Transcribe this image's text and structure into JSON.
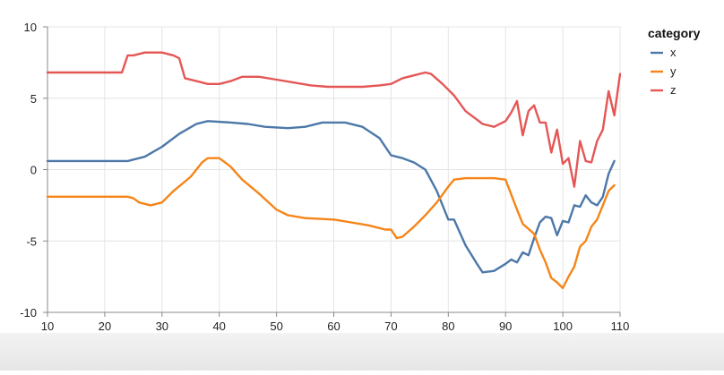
{
  "chart_data": {
    "type": "line",
    "xlim": [
      10,
      110
    ],
    "ylim": [
      -10,
      10
    ],
    "x_ticks": [
      10,
      20,
      30,
      40,
      50,
      60,
      70,
      80,
      90,
      100,
      110
    ],
    "y_ticks": [
      10,
      5,
      0,
      -5,
      -10
    ],
    "grid": true,
    "legend": {
      "title": "category",
      "position": "right",
      "entries": [
        "x",
        "y",
        "z"
      ]
    },
    "colors": {
      "x": "#4c78a8",
      "y": "#f58518",
      "z": "#e45756"
    },
    "series": [
      {
        "name": "x",
        "points": [
          [
            10,
            0.6
          ],
          [
            15,
            0.6
          ],
          [
            20,
            0.6
          ],
          [
            24,
            0.6
          ],
          [
            27,
            0.9
          ],
          [
            30,
            1.6
          ],
          [
            33,
            2.5
          ],
          [
            36,
            3.2
          ],
          [
            38,
            3.4
          ],
          [
            42,
            3.3
          ],
          [
            45,
            3.2
          ],
          [
            48,
            3.0
          ],
          [
            52,
            2.9
          ],
          [
            55,
            3.0
          ],
          [
            58,
            3.3
          ],
          [
            62,
            3.3
          ],
          [
            65,
            3.0
          ],
          [
            68,
            2.2
          ],
          [
            70,
            1.0
          ],
          [
            72,
            0.8
          ],
          [
            74,
            0.5
          ],
          [
            76,
            0.0
          ],
          [
            78,
            -1.5
          ],
          [
            80,
            -3.5
          ],
          [
            81,
            -3.5
          ],
          [
            83,
            -5.3
          ],
          [
            85,
            -6.6
          ],
          [
            86,
            -7.2
          ],
          [
            88,
            -7.1
          ],
          [
            90,
            -6.6
          ],
          [
            91,
            -6.3
          ],
          [
            92,
            -6.5
          ],
          [
            93,
            -5.8
          ],
          [
            94,
            -6.0
          ],
          [
            95,
            -4.8
          ],
          [
            96,
            -3.7
          ],
          [
            97,
            -3.3
          ],
          [
            98,
            -3.4
          ],
          [
            99,
            -4.6
          ],
          [
            100,
            -3.6
          ],
          [
            101,
            -3.7
          ],
          [
            102,
            -2.5
          ],
          [
            103,
            -2.6
          ],
          [
            104,
            -1.8
          ],
          [
            105,
            -2.3
          ],
          [
            106,
            -2.5
          ],
          [
            107,
            -1.9
          ],
          [
            108,
            -0.3
          ],
          [
            109,
            0.6
          ]
        ]
      },
      {
        "name": "y",
        "points": [
          [
            10,
            -1.9
          ],
          [
            15,
            -1.9
          ],
          [
            20,
            -1.9
          ],
          [
            24,
            -1.9
          ],
          [
            25,
            -2.0
          ],
          [
            26,
            -2.3
          ],
          [
            28,
            -2.5
          ],
          [
            30,
            -2.3
          ],
          [
            32,
            -1.5
          ],
          [
            35,
            -0.5
          ],
          [
            37,
            0.5
          ],
          [
            38,
            0.8
          ],
          [
            40,
            0.8
          ],
          [
            42,
            0.2
          ],
          [
            44,
            -0.7
          ],
          [
            47,
            -1.7
          ],
          [
            50,
            -2.8
          ],
          [
            52,
            -3.2
          ],
          [
            55,
            -3.4
          ],
          [
            60,
            -3.5
          ],
          [
            63,
            -3.7
          ],
          [
            66,
            -3.9
          ],
          [
            69,
            -4.2
          ],
          [
            70,
            -4.2
          ],
          [
            71,
            -4.8
          ],
          [
            72,
            -4.7
          ],
          [
            74,
            -4.0
          ],
          [
            76,
            -3.2
          ],
          [
            78,
            -2.3
          ],
          [
            80,
            -1.2
          ],
          [
            81,
            -0.7
          ],
          [
            83,
            -0.6
          ],
          [
            86,
            -0.6
          ],
          [
            88,
            -0.6
          ],
          [
            90,
            -0.7
          ],
          [
            92,
            -2.8
          ],
          [
            93,
            -3.8
          ],
          [
            95,
            -4.5
          ],
          [
            96,
            -5.6
          ],
          [
            97,
            -6.5
          ],
          [
            98,
            -7.6
          ],
          [
            99,
            -7.9
          ],
          [
            100,
            -8.3
          ],
          [
            101,
            -7.5
          ],
          [
            102,
            -6.8
          ],
          [
            103,
            -5.4
          ],
          [
            104,
            -5.0
          ],
          [
            105,
            -4.0
          ],
          [
            106,
            -3.5
          ],
          [
            107,
            -2.5
          ],
          [
            108,
            -1.5
          ],
          [
            109,
            -1.1
          ]
        ]
      },
      {
        "name": "z",
        "points": [
          [
            10,
            6.8
          ],
          [
            15,
            6.8
          ],
          [
            20,
            6.8
          ],
          [
            23,
            6.8
          ],
          [
            24,
            8.0
          ],
          [
            25,
            8.0
          ],
          [
            27,
            8.2
          ],
          [
            30,
            8.2
          ],
          [
            32,
            8.0
          ],
          [
            33,
            7.8
          ],
          [
            34,
            6.4
          ],
          [
            36,
            6.2
          ],
          [
            38,
            6.0
          ],
          [
            40,
            6.0
          ],
          [
            42,
            6.2
          ],
          [
            44,
            6.5
          ],
          [
            47,
            6.5
          ],
          [
            50,
            6.3
          ],
          [
            53,
            6.1
          ],
          [
            56,
            5.9
          ],
          [
            59,
            5.8
          ],
          [
            62,
            5.8
          ],
          [
            65,
            5.8
          ],
          [
            68,
            5.9
          ],
          [
            70,
            6.0
          ],
          [
            72,
            6.4
          ],
          [
            74,
            6.6
          ],
          [
            76,
            6.8
          ],
          [
            77,
            6.7
          ],
          [
            79,
            6.0
          ],
          [
            81,
            5.2
          ],
          [
            83,
            4.1
          ],
          [
            85,
            3.5
          ],
          [
            86,
            3.2
          ],
          [
            88,
            3.0
          ],
          [
            90,
            3.4
          ],
          [
            91,
            4.0
          ],
          [
            92,
            4.8
          ],
          [
            93,
            2.4
          ],
          [
            94,
            4.1
          ],
          [
            95,
            4.5
          ],
          [
            96,
            3.3
          ],
          [
            97,
            3.3
          ],
          [
            98,
            1.2
          ],
          [
            99,
            2.8
          ],
          [
            100,
            0.4
          ],
          [
            101,
            0.8
          ],
          [
            102,
            -1.2
          ],
          [
            103,
            2.0
          ],
          [
            104,
            0.6
          ],
          [
            105,
            0.5
          ],
          [
            106,
            2.0
          ],
          [
            107,
            2.8
          ],
          [
            108,
            5.5
          ],
          [
            109,
            3.8
          ],
          [
            110,
            6.7
          ]
        ]
      }
    ]
  }
}
